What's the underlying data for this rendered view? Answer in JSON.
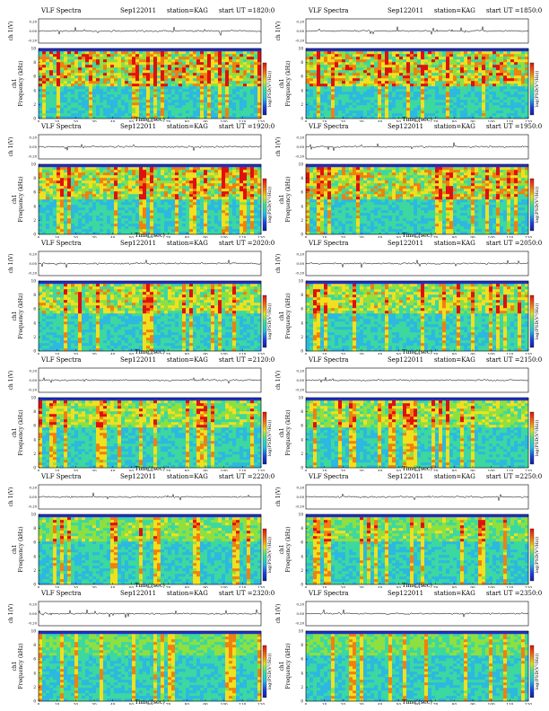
{
  "common": {
    "header_title": "VLF Spectra",
    "date": "Sep122011",
    "station": "station=KAG",
    "start_label": "start UT =",
    "waveform_ylabel": "ch 1(V)",
    "waveform_ticks": [
      "0.20",
      "0.00",
      "-0.20"
    ],
    "spec_ylabel_top": "ch1",
    "spec_ylabel": "Frequency (kHz)",
    "xlabel": "Time (sec)",
    "xticks": [
      "0",
      "10",
      "20",
      "30",
      "40",
      "50",
      "60",
      "70",
      "80",
      "90",
      "100",
      "110",
      "120"
    ],
    "yticks": [
      "0",
      "2",
      "4",
      "6",
      "8",
      "10"
    ],
    "colorbar_label": "log(PSD(V²/Hz))"
  },
  "panels": [
    {
      "ut": "1820:0"
    },
    {
      "ut": "1850:0"
    },
    {
      "ut": "1920:0"
    },
    {
      "ut": "1950:0"
    },
    {
      "ut": "2020:0"
    },
    {
      "ut": "2050:0"
    },
    {
      "ut": "2120:0"
    },
    {
      "ut": "2150:0"
    },
    {
      "ut": "2220:0"
    },
    {
      "ut": "2250:0"
    },
    {
      "ut": "2320:0"
    },
    {
      "ut": "2350:0"
    }
  ],
  "chart_data": {
    "type": "heatmap",
    "xlabel": "Time (sec)",
    "ylabel": "Frequency (kHz)",
    "xlim": [
      0,
      120
    ],
    "ylim": [
      0,
      10
    ],
    "colorbar": "log(PSD(V²/Hz))",
    "colors": {
      "low": "#1a2bc8",
      "mid": "#00c8d0",
      "high": "#e01010"
    }
  }
}
